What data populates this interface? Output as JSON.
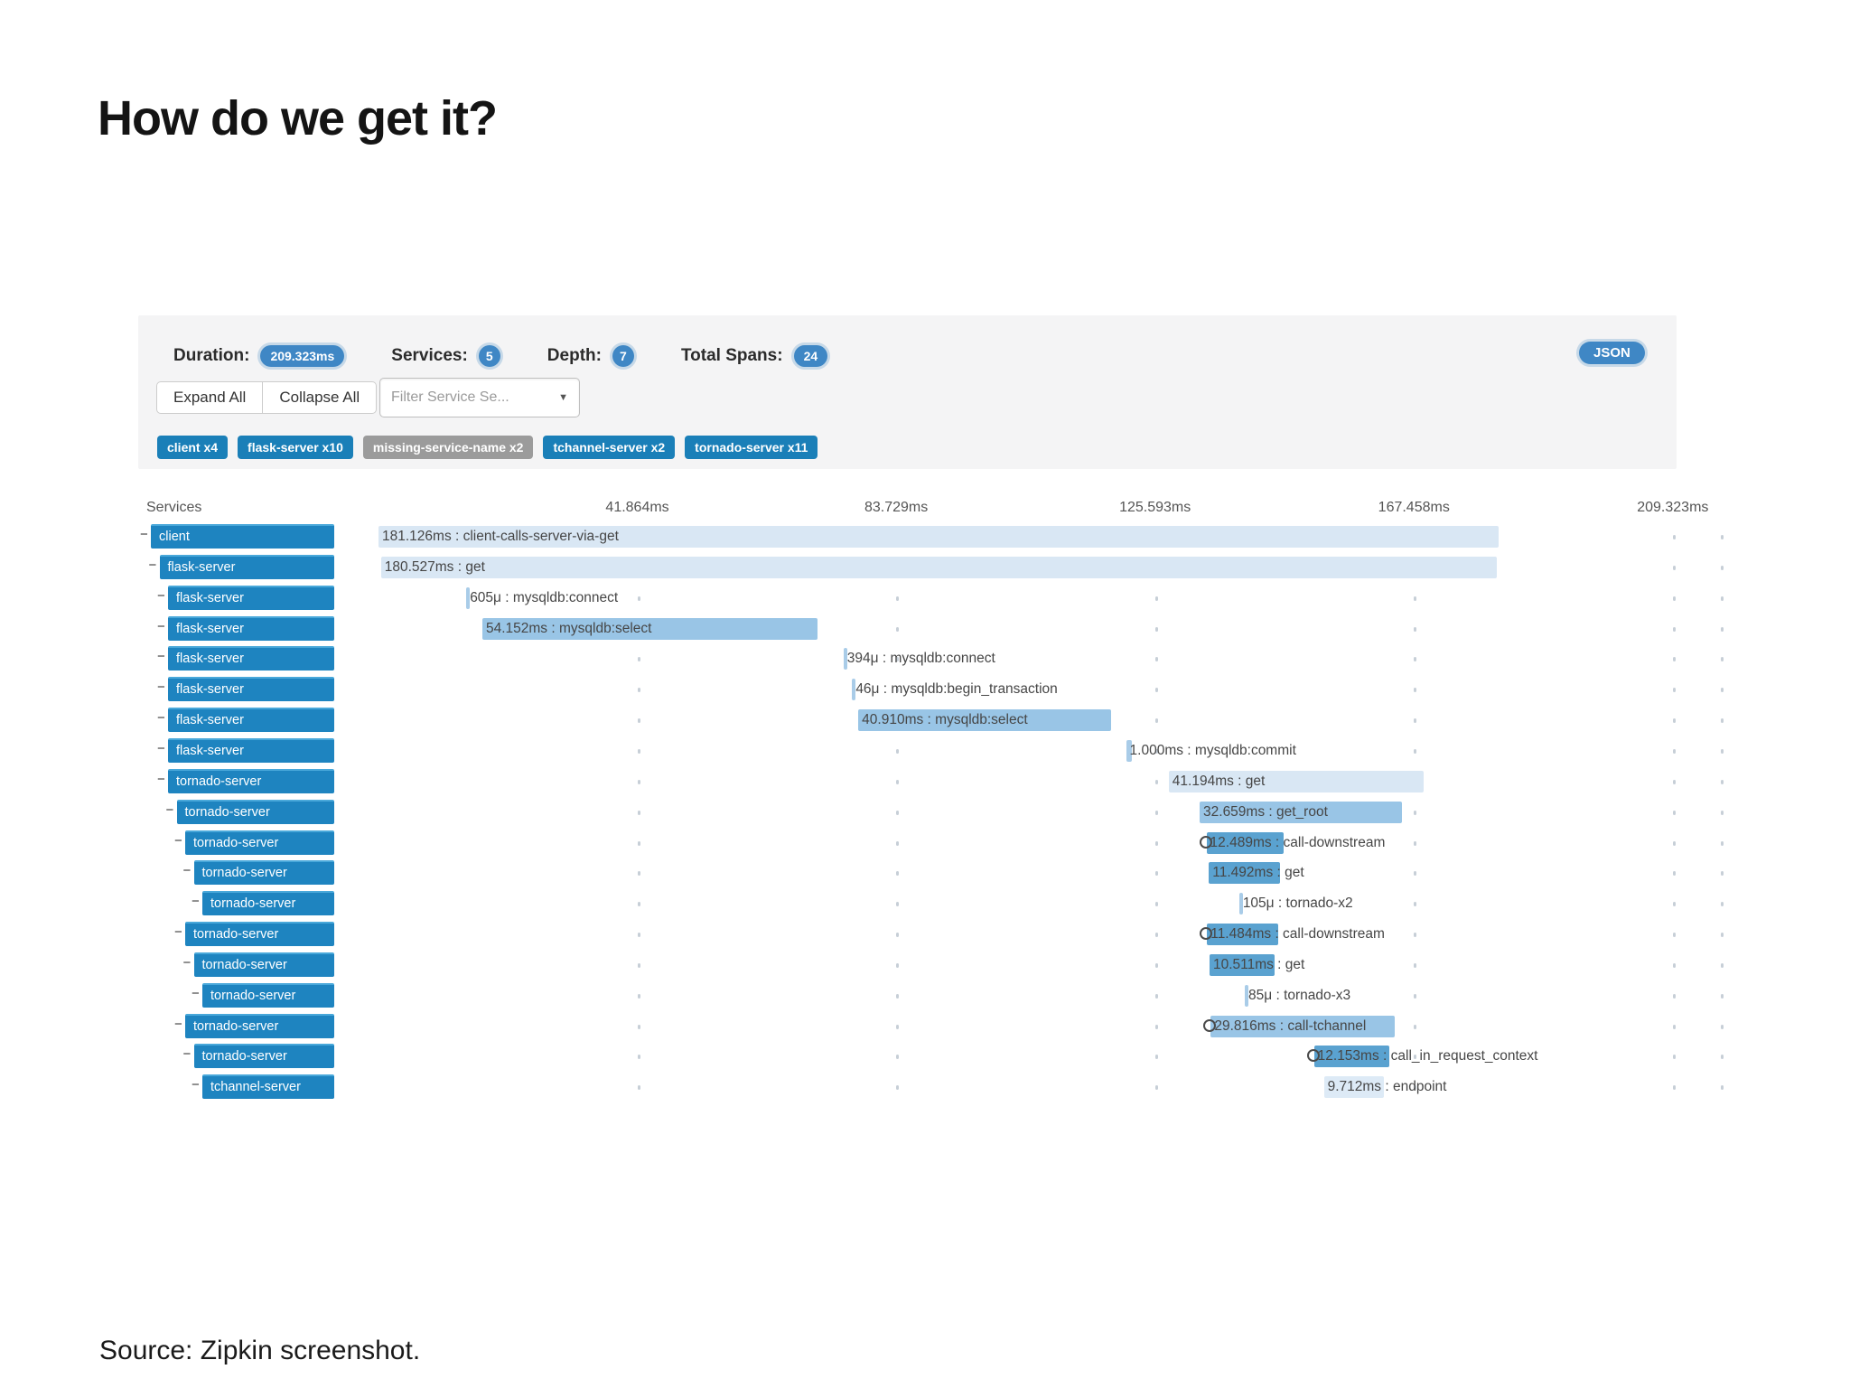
{
  "slide": {
    "title": "How do we get it?",
    "source": "Source: Zipkin screenshot."
  },
  "zipkin": {
    "stats": [
      {
        "label": "Duration:",
        "value": "209.323ms",
        "shape": "pill"
      },
      {
        "label": "Services:",
        "value": "5",
        "shape": "circle"
      },
      {
        "label": "Depth:",
        "value": "7",
        "shape": "circle"
      },
      {
        "label": "Total Spans:",
        "value": "24",
        "shape": "pill"
      }
    ],
    "json_button_label": "JSON",
    "controls": {
      "expand_all": "Expand All",
      "collapse_all": "Collapse All",
      "filter_placeholder": "Filter Service Se...",
      "filter_caret": "▼"
    },
    "service_tags": [
      {
        "label": "client x4",
        "color": "#1a7fb8"
      },
      {
        "label": "flask-server x10",
        "color": "#1a7fb8"
      },
      {
        "label": "missing-service-name x2",
        "color": "#9b9b9b"
      },
      {
        "label": "tchannel-server x2",
        "color": "#1a7fb8"
      },
      {
        "label": "tornado-server x11",
        "color": "#1a7fb8"
      }
    ],
    "axis": {
      "services_header": "Services",
      "ticks": [
        {
          "label": "41.864ms",
          "ms": 41.864
        },
        {
          "label": "83.729ms",
          "ms": 83.729
        },
        {
          "label": "125.593ms",
          "ms": 125.593
        },
        {
          "label": "167.458ms",
          "ms": 167.458
        },
        {
          "label": "209.323ms",
          "ms": 209.323
        }
      ],
      "total_ms": 209.323
    },
    "rows": [
      {
        "service": "client",
        "depth": 0,
        "label": "181.126ms : client-calls-server-via-get",
        "start_ms": 0,
        "duration_ms": 181.126,
        "style": "light",
        "ring": false
      },
      {
        "service": "flask-server",
        "depth": 1,
        "label": "180.527ms : get",
        "start_ms": 0.4,
        "duration_ms": 180.527,
        "style": "light",
        "ring": false
      },
      {
        "service": "flask-server",
        "depth": 2,
        "label": "605μ : mysqldb:connect",
        "start_ms": 14.2,
        "duration_ms": 0.605,
        "style": "tick",
        "ring": false
      },
      {
        "service": "flask-server",
        "depth": 2,
        "label": "54.152ms : mysqldb:select",
        "start_ms": 16.8,
        "duration_ms": 54.152,
        "style": "medium",
        "ring": false
      },
      {
        "service": "flask-server",
        "depth": 2,
        "label": "394μ : mysqldb:connect",
        "start_ms": 75.2,
        "duration_ms": 0.394,
        "style": "tick",
        "ring": false
      },
      {
        "service": "flask-server",
        "depth": 2,
        "label": "46μ : mysqldb:begin_transaction",
        "start_ms": 76.6,
        "duration_ms": 0.046,
        "style": "tick",
        "ring": false
      },
      {
        "service": "flask-server",
        "depth": 2,
        "label": "40.910ms : mysqldb:select",
        "start_ms": 77.6,
        "duration_ms": 40.91,
        "style": "medium",
        "ring": false
      },
      {
        "service": "flask-server",
        "depth": 2,
        "label": "1.000ms : mysqldb:commit",
        "start_ms": 120.9,
        "duration_ms": 1.0,
        "style": "tick",
        "ring": false
      },
      {
        "service": "tornado-server",
        "depth": 2,
        "label": "41.194ms : get",
        "start_ms": 127.8,
        "duration_ms": 41.194,
        "style": "light",
        "ring": false
      },
      {
        "service": "tornado-server",
        "depth": 3,
        "label": "32.659ms : get_root",
        "start_ms": 132.8,
        "duration_ms": 32.659,
        "style": "medium",
        "ring": false
      },
      {
        "service": "tornado-server",
        "depth": 4,
        "label": "12.489ms : call-downstream",
        "start_ms": 133.9,
        "duration_ms": 12.489,
        "style": "dark",
        "ring": true
      },
      {
        "service": "tornado-server",
        "depth": 5,
        "label": "11.492ms : get",
        "start_ms": 134.3,
        "duration_ms": 11.492,
        "style": "dark",
        "ring": false
      },
      {
        "service": "tornado-server",
        "depth": 6,
        "label": "105μ : tornado-x2",
        "start_ms": 139.2,
        "duration_ms": 0.105,
        "style": "tick",
        "ring": false
      },
      {
        "service": "tornado-server",
        "depth": 4,
        "label": "11.484ms : call-downstream",
        "start_ms": 134.0,
        "duration_ms": 11.484,
        "style": "dark",
        "ring": true
      },
      {
        "service": "tornado-server",
        "depth": 5,
        "label": "10.511ms : get",
        "start_ms": 134.4,
        "duration_ms": 10.511,
        "style": "dark",
        "ring": false
      },
      {
        "service": "tornado-server",
        "depth": 6,
        "label": "85μ : tornado-x3",
        "start_ms": 140.1,
        "duration_ms": 0.085,
        "style": "tick",
        "ring": false
      },
      {
        "service": "tornado-server",
        "depth": 4,
        "label": "29.816ms : call-tchannel",
        "start_ms": 134.6,
        "duration_ms": 29.816,
        "style": "medium",
        "ring": true
      },
      {
        "service": "tornado-server",
        "depth": 5,
        "label": "12.153ms : call_in_request_context",
        "start_ms": 151.3,
        "duration_ms": 12.153,
        "style": "dark",
        "ring": true
      },
      {
        "service": "tchannel-server",
        "depth": 6,
        "label": "9.712ms : endpoint",
        "start_ms": 152.9,
        "duration_ms": 9.712,
        "style": "faint",
        "ring": false
      }
    ]
  }
}
